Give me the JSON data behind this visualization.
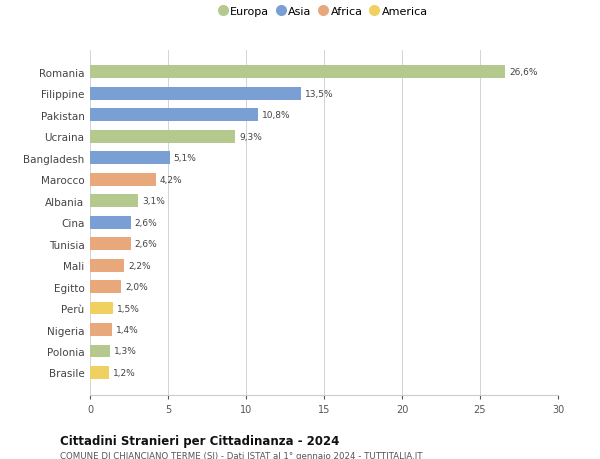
{
  "countries": [
    "Romania",
    "Filippine",
    "Pakistan",
    "Ucraina",
    "Bangladesh",
    "Marocco",
    "Albania",
    "Cina",
    "Tunisia",
    "Mali",
    "Egitto",
    "Perù",
    "Nigeria",
    "Polonia",
    "Brasile"
  ],
  "values": [
    26.6,
    13.5,
    10.8,
    9.3,
    5.1,
    4.2,
    3.1,
    2.6,
    2.6,
    2.2,
    2.0,
    1.5,
    1.4,
    1.3,
    1.2
  ],
  "labels": [
    "26,6%",
    "13,5%",
    "10,8%",
    "9,3%",
    "5,1%",
    "4,2%",
    "3,1%",
    "2,6%",
    "2,6%",
    "2,2%",
    "2,0%",
    "1,5%",
    "1,4%",
    "1,3%",
    "1,2%"
  ],
  "continents": [
    "Europa",
    "Asia",
    "Asia",
    "Europa",
    "Asia",
    "Africa",
    "Europa",
    "Asia",
    "Africa",
    "Africa",
    "Africa",
    "America",
    "Africa",
    "Europa",
    "America"
  ],
  "colors": {
    "Europa": "#b5c98e",
    "Asia": "#7a9fd4",
    "Africa": "#e8a87c",
    "America": "#f0d060"
  },
  "legend_order": [
    "Europa",
    "Asia",
    "Africa",
    "America"
  ],
  "title": "Cittadini Stranieri per Cittadinanza - 2024",
  "subtitle": "COMUNE DI CHIANCIANO TERME (SI) - Dati ISTAT al 1° gennaio 2024 - TUTTITALIA.IT",
  "xlim": [
    0,
    30
  ],
  "xticks": [
    0,
    5,
    10,
    15,
    20,
    25,
    30
  ],
  "background_color": "#ffffff",
  "grid_color": "#cccccc"
}
